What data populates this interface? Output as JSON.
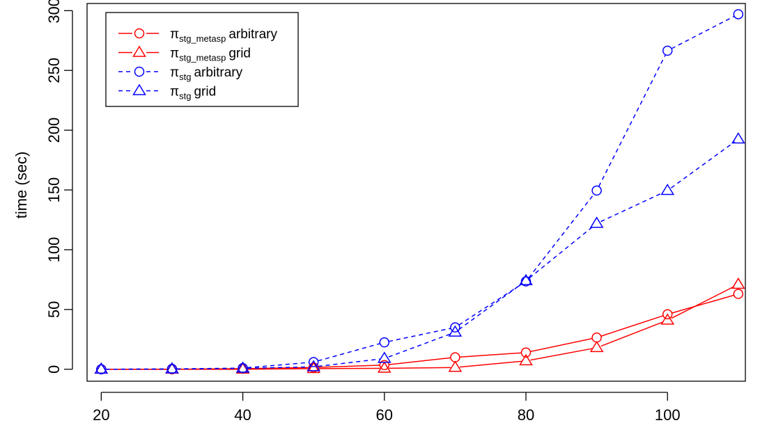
{
  "chart_data": {
    "type": "line",
    "title": "",
    "xlabel": "",
    "ylabel": "time (sec)",
    "xlim": [
      18,
      111
    ],
    "ylim": [
      -10,
      306
    ],
    "x_ticks": [
      20,
      40,
      60,
      80,
      100
    ],
    "y_ticks": [
      0,
      50,
      100,
      150,
      200,
      250,
      300
    ],
    "grid": false,
    "legend_position": "top-left",
    "x": [
      20,
      30,
      40,
      50,
      60,
      70,
      80,
      90,
      100,
      110
    ],
    "series": [
      {
        "name": "π",
        "subscript": "stg_metasp",
        "suffix": "arbitrary",
        "marker": "circle",
        "line": "solid",
        "color": "#ff0000",
        "values": [
          0,
          0,
          0.5,
          1.5,
          3.5,
          10,
          14,
          26.5,
          46,
          63
        ]
      },
      {
        "name": "π",
        "subscript": "stg_metasp",
        "suffix": "grid",
        "marker": "triangle",
        "line": "solid",
        "color": "#ff0000",
        "values": [
          0,
          0,
          0,
          0.5,
          0.8,
          1.5,
          7,
          18,
          41,
          71
        ]
      },
      {
        "name": "π",
        "subscript": "stg",
        "suffix": "arbitrary",
        "marker": "circle",
        "line": "dashed",
        "color": "#0000ff",
        "values": [
          0,
          0.3,
          1,
          6,
          22.5,
          35,
          73.5,
          149.5,
          266.5,
          297
        ]
      },
      {
        "name": "π",
        "subscript": "stg",
        "suffix": "grid",
        "marker": "triangle",
        "line": "dashed",
        "color": "#0000ff",
        "values": [
          0,
          0.2,
          0.8,
          2,
          9,
          31,
          74,
          122,
          149.5,
          192.5
        ]
      }
    ]
  }
}
